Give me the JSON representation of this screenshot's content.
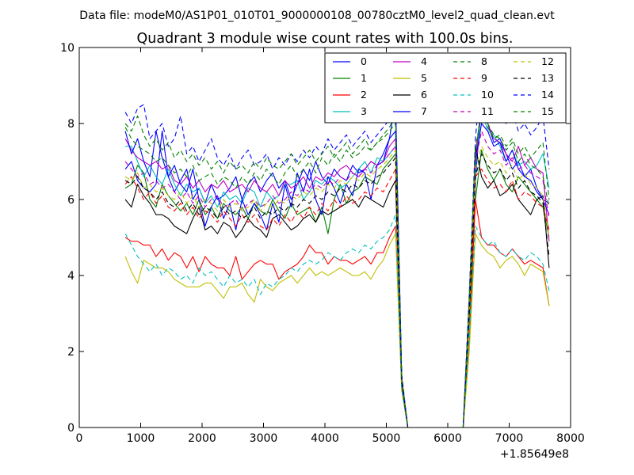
{
  "figure": {
    "suptitle": "Data file: modeM0/AS1P01_010T01_9000000108_00780cztM0_level2_quad_clean.evt"
  },
  "chart_data": {
    "type": "line",
    "title": "Quadrant 3 module wise count rates with 100.0s bins.",
    "xlabel": "",
    "ylabel": "",
    "x_offset_label": "+1.85649e8",
    "xlim": [
      0,
      8000
    ],
    "ylim": [
      0,
      10
    ],
    "xticks": [
      0,
      1000,
      2000,
      3000,
      4000,
      5000,
      6000,
      7000,
      8000
    ],
    "yticks": [
      0,
      2,
      4,
      6,
      8,
      10
    ],
    "legend_position": "top-right",
    "x": [
      750,
      850,
      950,
      1050,
      1150,
      1250,
      1350,
      1450,
      1550,
      1650,
      1750,
      1850,
      1950,
      2050,
      2150,
      2250,
      2350,
      2450,
      2550,
      2650,
      2750,
      2850,
      2950,
      3050,
      3150,
      3250,
      3350,
      3450,
      3550,
      3650,
      3750,
      3850,
      3950,
      4050,
      4150,
      4250,
      4350,
      4450,
      4550,
      4650,
      4750,
      4850,
      4950,
      5050,
      5150,
      5250,
      5350,
      5450,
      5550,
      5650,
      5750,
      5850,
      5950,
      6050,
      6150,
      6250,
      6350,
      6450,
      6550,
      6650,
      6750,
      6850,
      6950,
      7050,
      7150,
      7250,
      7350,
      7450,
      7550,
      7650
    ],
    "series": [
      {
        "name": "0",
        "color": "#0000ff",
        "dash": "solid",
        "values": [
          6.8,
          7.0,
          6.5,
          6.3,
          6.2,
          6.4,
          7.8,
          6.6,
          6.2,
          6.5,
          6.8,
          6.0,
          6.3,
          5.9,
          6.4,
          6.0,
          6.1,
          6.3,
          6.6,
          6.0,
          6.4,
          6.6,
          6.2,
          6.5,
          6.7,
          6.3,
          6.5,
          6.0,
          6.4,
          6.8,
          6.5,
          7.0,
          6.6,
          6.4,
          6.8,
          6.6,
          6.5,
          6.9,
          6.7,
          6.8,
          7.0,
          6.9,
          7.2,
          7.6,
          7.8,
          1.3,
          0,
          0,
          0,
          0,
          0,
          0,
          0,
          0,
          0,
          0,
          3.0,
          6.5,
          8.6,
          8.0,
          7.5,
          7.6,
          7.2,
          6.8,
          7.0,
          6.6,
          6.8,
          6.3,
          6.0,
          5.9
        ]
      },
      {
        "name": "1",
        "color": "#008000",
        "dash": "solid",
        "values": [
          6.3,
          6.4,
          6.9,
          6.7,
          6.0,
          5.8,
          6.4,
          6.1,
          5.9,
          5.7,
          5.9,
          5.6,
          6.0,
          5.6,
          5.8,
          5.5,
          5.9,
          5.7,
          5.6,
          5.8,
          5.5,
          5.9,
          5.7,
          5.6,
          6.0,
          5.7,
          5.5,
          5.9,
          5.6,
          5.7,
          5.8,
          5.4,
          5.8,
          5.1,
          6.0,
          6.4,
          5.9,
          6.2,
          6.3,
          6.6,
          6.5,
          6.4,
          6.8,
          7.0,
          7.2,
          1.2,
          0,
          0,
          0,
          0,
          0,
          0,
          0,
          0,
          0,
          0,
          2.8,
          6.0,
          7.3,
          6.8,
          6.5,
          6.8,
          6.4,
          6.2,
          6.6,
          6.4,
          6.2,
          6.0,
          5.8,
          5.0
        ]
      },
      {
        "name": "2",
        "color": "#ff0000",
        "dash": "solid",
        "values": [
          5.0,
          4.9,
          4.9,
          4.8,
          4.8,
          4.5,
          4.7,
          4.4,
          4.6,
          4.5,
          4.2,
          4.5,
          4.1,
          4.5,
          4.3,
          4.2,
          4.2,
          4.0,
          4.5,
          3.9,
          4.1,
          4.3,
          4.4,
          4.3,
          4.3,
          3.9,
          4.1,
          4.2,
          4.3,
          4.5,
          4.8,
          4.6,
          4.6,
          4.3,
          4.5,
          4.4,
          4.4,
          4.3,
          4.4,
          4.5,
          4.3,
          4.6,
          4.6,
          5.0,
          5.3,
          1.0,
          0,
          0,
          0,
          0,
          0,
          0,
          0,
          0,
          0,
          0,
          2.2,
          6.0,
          5.0,
          4.8,
          4.8,
          4.6,
          4.5,
          4.7,
          4.5,
          4.3,
          4.4,
          4.3,
          4.2,
          3.2
        ]
      },
      {
        "name": "3",
        "color": "#00bfbf",
        "dash": "solid",
        "values": [
          7.4,
          7.4,
          7.0,
          6.6,
          6.9,
          6.6,
          6.4,
          6.8,
          6.4,
          6.1,
          6.4,
          6.2,
          6.3,
          5.9,
          6.1,
          5.8,
          6.2,
          6.0,
          6.1,
          5.9,
          6.3,
          6.2,
          5.8,
          6.2,
          6.0,
          6.1,
          6.4,
          6.4,
          6.5,
          6.0,
          6.2,
          6.5,
          6.4,
          6.6,
          6.5,
          6.3,
          6.4,
          6.6,
          6.8,
          7.0,
          6.7,
          7.1,
          7.0,
          7.2,
          7.4,
          1.3,
          0,
          0,
          0,
          0,
          0,
          0,
          0,
          0,
          0,
          0,
          3.0,
          6.8,
          8.4,
          7.8,
          7.7,
          7.4,
          7.0,
          7.3,
          6.9,
          7.0,
          6.8,
          6.9,
          7.2,
          6.3
        ]
      },
      {
        "name": "4",
        "color": "#bf00bf",
        "dash": "solid",
        "values": [
          7.6,
          7.3,
          7.1,
          7.0,
          6.9,
          7.0,
          6.8,
          6.9,
          6.5,
          6.4,
          6.6,
          6.3,
          6.5,
          6.2,
          6.4,
          6.3,
          6.5,
          6.2,
          6.3,
          6.4,
          6.2,
          6.5,
          6.3,
          6.2,
          6.4,
          6.1,
          6.5,
          6.3,
          6.4,
          6.6,
          6.3,
          6.6,
          6.5,
          6.7,
          6.6,
          6.8,
          6.9,
          6.7,
          6.6,
          6.8,
          7.0,
          6.9,
          7.0,
          7.4,
          7.6,
          1.3,
          0,
          0,
          0,
          0,
          0,
          0,
          0,
          0,
          0,
          0,
          3.2,
          7.0,
          8.6,
          8.0,
          7.6,
          7.5,
          7.2,
          7.0,
          7.4,
          6.9,
          7.1,
          6.8,
          6.7,
          4.9
        ]
      },
      {
        "name": "5",
        "color": "#bfbf00",
        "dash": "solid",
        "values": [
          4.5,
          4.1,
          3.8,
          4.4,
          4.3,
          4.2,
          4.2,
          4.1,
          3.9,
          3.8,
          3.7,
          3.7,
          3.7,
          3.8,
          3.8,
          3.6,
          3.4,
          3.7,
          3.7,
          3.8,
          3.5,
          3.3,
          3.9,
          3.7,
          3.6,
          3.8,
          3.9,
          4.0,
          3.8,
          4.0,
          4.2,
          4.0,
          4.1,
          4.0,
          4.1,
          4.2,
          4.1,
          4.0,
          4.0,
          4.1,
          3.9,
          4.2,
          4.4,
          4.8,
          5.1,
          1.0,
          0,
          0,
          0,
          0,
          0,
          0,
          0,
          0,
          0,
          0,
          2.0,
          5.1,
          4.8,
          4.6,
          4.5,
          4.2,
          4.4,
          4.5,
          4.3,
          4.0,
          4.3,
          4.2,
          4.1,
          3.2
        ]
      },
      {
        "name": "6",
        "color": "#000000",
        "dash": "solid",
        "values": [
          6.0,
          5.8,
          6.4,
          6.1,
          5.9,
          5.6,
          5.6,
          5.5,
          5.3,
          5.2,
          5.1,
          5.5,
          5.8,
          5.2,
          5.3,
          5.1,
          5.4,
          5.3,
          5.0,
          5.2,
          5.5,
          5.3,
          5.2,
          5.0,
          5.5,
          5.6,
          5.4,
          5.2,
          5.3,
          5.5,
          5.6,
          5.4,
          5.7,
          5.6,
          5.7,
          5.8,
          5.9,
          6.0,
          5.8,
          6.1,
          6.0,
          5.9,
          5.8,
          6.2,
          6.5,
          1.1,
          0,
          0,
          0,
          0,
          0,
          0,
          0,
          0,
          0,
          0,
          3.0,
          7.4,
          6.6,
          6.3,
          6.5,
          6.1,
          6.2,
          6.4,
          6.0,
          5.8,
          5.6,
          6.0,
          6.1,
          4.2
        ]
      },
      {
        "name": "7",
        "color": "#0000ff",
        "dash": "solid",
        "values": [
          7.8,
          7.2,
          7.6,
          7.0,
          6.6,
          7.8,
          7.1,
          6.6,
          6.9,
          6.4,
          6.2,
          6.8,
          6.0,
          5.3,
          5.8,
          6.1,
          5.5,
          5.9,
          5.2,
          6.0,
          5.6,
          5.9,
          5.6,
          5.2,
          5.9,
          5.4,
          6.4,
          5.8,
          6.7,
          6.2,
          6.8,
          6.0,
          5.6,
          6.6,
          6.3,
          5.9,
          6.4,
          6.1,
          6.8,
          6.7,
          6.0,
          6.9,
          7.0,
          7.6,
          8.6,
          1.3,
          0,
          0,
          0,
          0,
          0,
          0,
          0,
          0,
          0,
          0,
          3.4,
          7.0,
          8.0,
          7.8,
          7.4,
          7.5,
          7.0,
          7.3,
          6.8,
          6.6,
          6.5,
          6.2,
          6.0,
          5.6
        ]
      },
      {
        "name": "8",
        "color": "#008000",
        "dash": "dashed",
        "values": [
          7.9,
          7.6,
          7.4,
          7.3,
          7.2,
          7.0,
          7.1,
          6.9,
          6.7,
          6.8,
          6.6,
          6.9,
          6.5,
          6.6,
          6.7,
          6.4,
          6.6,
          6.5,
          6.3,
          6.6,
          6.4,
          6.7,
          6.5,
          6.8,
          6.6,
          6.4,
          6.7,
          6.9,
          6.6,
          6.8,
          7.0,
          6.7,
          7.1,
          6.9,
          7.2,
          7.0,
          7.3,
          7.1,
          7.2,
          7.4,
          7.3,
          7.5,
          7.6,
          7.8,
          8.0,
          1.3,
          0,
          0,
          0,
          0,
          0,
          0,
          0,
          0,
          0,
          0,
          3.3,
          7.2,
          8.4,
          8.0,
          7.7,
          7.6,
          7.3,
          7.5,
          7.0,
          7.2,
          6.9,
          6.8,
          6.6,
          5.8
        ]
      },
      {
        "name": "9",
        "color": "#ff0000",
        "dash": "dashed",
        "values": [
          6.4,
          6.6,
          6.3,
          6.0,
          6.2,
          5.9,
          6.1,
          5.8,
          5.7,
          5.9,
          5.6,
          5.8,
          5.5,
          5.7,
          5.6,
          5.4,
          5.7,
          5.5,
          5.3,
          5.6,
          5.4,
          5.6,
          5.3,
          5.2,
          5.5,
          5.3,
          5.6,
          5.4,
          5.7,
          5.5,
          5.8,
          5.6,
          5.9,
          5.7,
          6.0,
          5.8,
          6.1,
          5.9,
          6.0,
          6.2,
          6.1,
          6.3,
          6.2,
          6.5,
          6.8,
          1.2,
          0,
          0,
          0,
          0,
          0,
          0,
          0,
          0,
          0,
          0,
          3.0,
          6.6,
          6.8,
          6.5,
          6.3,
          6.4,
          6.2,
          6.5,
          6.0,
          6.2,
          6.1,
          5.9,
          5.8,
          5.2
        ]
      },
      {
        "name": "10",
        "color": "#00bfbf",
        "dash": "dashed",
        "values": [
          5.1,
          4.8,
          4.5,
          4.3,
          4.1,
          4.3,
          4.0,
          4.2,
          4.1,
          3.9,
          4.0,
          3.8,
          4.2,
          4.0,
          4.1,
          3.9,
          3.7,
          4.0,
          3.8,
          3.9,
          3.7,
          3.9,
          3.5,
          3.8,
          3.7,
          3.9,
          4.0,
          4.2,
          4.1,
          4.3,
          4.4,
          4.3,
          4.4,
          4.6,
          4.5,
          4.4,
          4.6,
          4.7,
          4.6,
          4.8,
          4.7,
          4.9,
          5.0,
          5.2,
          5.6,
          1.0,
          0,
          0,
          0,
          0,
          0,
          0,
          0,
          0,
          0,
          0,
          2.4,
          5.3,
          5.0,
          4.8,
          4.9,
          4.6,
          4.5,
          4.7,
          4.5,
          4.4,
          4.6,
          4.5,
          4.3,
          3.6
        ]
      },
      {
        "name": "11",
        "color": "#bf00bf",
        "dash": "dashed",
        "values": [
          7.0,
          6.8,
          6.6,
          6.7,
          6.4,
          6.5,
          6.3,
          6.4,
          6.2,
          6.0,
          6.2,
          5.9,
          6.1,
          5.8,
          6.0,
          6.1,
          5.8,
          5.9,
          6.0,
          5.7,
          5.9,
          6.0,
          5.8,
          5.9,
          6.1,
          5.9,
          6.0,
          6.2,
          6.1,
          6.3,
          6.2,
          6.4,
          6.3,
          6.5,
          6.4,
          6.6,
          6.5,
          6.7,
          6.6,
          6.8,
          6.7,
          6.9,
          7.0,
          7.2,
          7.4,
          1.3,
          0,
          0,
          0,
          0,
          0,
          0,
          0,
          0,
          0,
          0,
          3.2,
          7.0,
          7.8,
          7.4,
          7.2,
          7.3,
          6.9,
          7.1,
          6.8,
          6.9,
          6.7,
          6.6,
          6.5,
          5.5
        ]
      },
      {
        "name": "12",
        "color": "#bfbf00",
        "dash": "dashed",
        "values": [
          6.6,
          6.5,
          6.7,
          6.3,
          6.4,
          6.2,
          6.3,
          6.1,
          6.0,
          6.2,
          5.9,
          6.1,
          5.8,
          6.0,
          5.9,
          5.7,
          6.0,
          5.8,
          5.9,
          5.7,
          5.8,
          6.0,
          5.7,
          5.9,
          5.8,
          6.0,
          5.9,
          6.1,
          6.0,
          6.2,
          6.1,
          6.3,
          6.2,
          6.4,
          6.3,
          6.5,
          6.4,
          6.6,
          6.5,
          6.7,
          6.6,
          6.8,
          6.9,
          7.1,
          7.3,
          1.2,
          0,
          0,
          0,
          0,
          0,
          0,
          0,
          0,
          0,
          0,
          3.1,
          6.8,
          7.4,
          7.1,
          6.9,
          7.0,
          6.7,
          6.9,
          6.5,
          6.7,
          6.4,
          6.3,
          6.1,
          5.0
        ]
      },
      {
        "name": "13",
        "color": "#000000",
        "dash": "dashed",
        "values": [
          6.5,
          6.4,
          6.6,
          6.3,
          6.2,
          6.0,
          6.2,
          5.9,
          5.8,
          6.0,
          5.7,
          5.9,
          5.6,
          5.8,
          5.7,
          5.5,
          5.8,
          5.6,
          5.7,
          5.5,
          5.6,
          5.8,
          5.5,
          5.7,
          5.6,
          5.8,
          5.7,
          5.9,
          5.8,
          6.0,
          5.9,
          6.1,
          6.0,
          6.2,
          6.1,
          6.3,
          6.2,
          6.4,
          6.3,
          6.5,
          6.4,
          6.6,
          6.7,
          6.9,
          7.1,
          1.2,
          0,
          0,
          0,
          0,
          0,
          0,
          0,
          0,
          0,
          0,
          3.0,
          6.6,
          7.2,
          6.9,
          6.7,
          6.8,
          6.5,
          6.7,
          6.3,
          6.5,
          6.2,
          6.1,
          5.9,
          4.5
        ]
      },
      {
        "name": "14",
        "color": "#0000ff",
        "dash": "dashed",
        "values": [
          8.3,
          8.0,
          8.4,
          8.5,
          7.6,
          7.8,
          8.0,
          7.4,
          7.6,
          8.2,
          7.2,
          7.4,
          7.0,
          7.3,
          7.6,
          7.1,
          6.9,
          7.2,
          6.8,
          7.1,
          7.3,
          6.9,
          7.0,
          7.2,
          6.8,
          7.1,
          6.9,
          7.2,
          7.0,
          7.3,
          7.1,
          7.4,
          7.2,
          7.6,
          7.3,
          7.5,
          7.7,
          7.4,
          7.6,
          7.8,
          7.5,
          7.7,
          7.9,
          8.1,
          8.4,
          1.4,
          0,
          0,
          0,
          0,
          0,
          0,
          0,
          0,
          0,
          0,
          3.5,
          7.6,
          9.4,
          9.0,
          8.6,
          8.4,
          8.0,
          8.3,
          7.8,
          8.0,
          7.7,
          7.9,
          8.2,
          6.8
        ]
      },
      {
        "name": "15",
        "color": "#008000",
        "dash": "dashed",
        "values": [
          8.0,
          7.8,
          8.2,
          7.7,
          7.4,
          7.6,
          7.3,
          7.5,
          7.1,
          7.3,
          7.0,
          7.2,
          6.9,
          7.1,
          6.8,
          7.0,
          6.7,
          7.0,
          6.8,
          6.9,
          6.7,
          7.0,
          6.8,
          7.1,
          6.9,
          6.8,
          7.0,
          7.2,
          6.9,
          7.1,
          7.3,
          7.0,
          7.2,
          7.4,
          7.1,
          7.3,
          7.5,
          7.2,
          7.4,
          7.6,
          7.3,
          7.5,
          7.7,
          7.9,
          8.2,
          1.3,
          0,
          0,
          0,
          0,
          0,
          0,
          0,
          0,
          0,
          0,
          3.4,
          7.4,
          8.2,
          7.9,
          7.6,
          7.7,
          7.4,
          7.6,
          7.2,
          7.4,
          7.1,
          7.3,
          7.5,
          6.0
        ]
      }
    ]
  }
}
